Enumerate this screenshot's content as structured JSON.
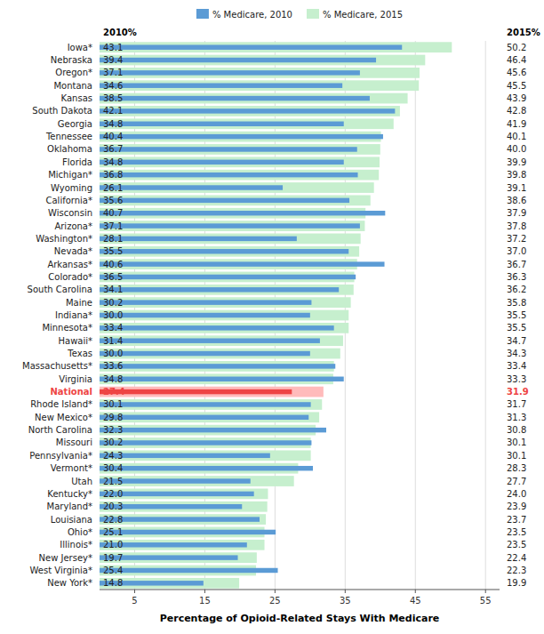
{
  "chart_data": {
    "type": "bar",
    "orientation": "horizontal",
    "xlabel": "Percentage of Opioid-Related Stays With Medicare",
    "annotations": [
      "2010%",
      "2015%"
    ],
    "categories": [
      "Iowa*",
      "Nebraska",
      "Oregon*",
      "Montana",
      "Kansas",
      "South Dakota",
      "Georgia",
      "Tennessee",
      "Oklahoma",
      "Florida",
      "Michigan*",
      "Wyoming",
      "California*",
      "Wisconsin",
      "Arizona*",
      "Washington*",
      "Nevada*",
      "Arkansas*",
      "Colorado*",
      "South Carolina",
      "Maine",
      "Indiana*",
      "Minnesota*",
      "Hawaii*",
      "Texas",
      "Massachusetts*",
      "Virginia",
      "National",
      "Rhode Island*",
      "New Mexico*",
      "North Carolina",
      "Missouri",
      "Pennsylvania*",
      "Vermont*",
      "Utah",
      "Kentucky*",
      "Maryland*",
      "Louisiana",
      "Ohio*",
      "Illinois*",
      "New Jersey*",
      "West Virginia*",
      "New York*"
    ],
    "series": [
      {
        "name": "% Medicare, 2010",
        "color": "#5B9BD5",
        "colors": [
          "#5B9BD5",
          "#5B9BD5",
          "#5B9BD5",
          "#5B9BD5",
          "#5B9BD5",
          "#5B9BD5",
          "#5B9BD5",
          "#5B9BD5",
          "#5B9BD5",
          "#5B9BD5",
          "#5B9BD5",
          "#5B9BD5",
          "#5B9BD5",
          "#5B9BD5",
          "#5B9BD5",
          "#5B9BD5",
          "#5B9BD5",
          "#5B9BD5",
          "#5B9BD5",
          "#5B9BD5",
          "#5B9BD5",
          "#5B9BD5",
          "#5B9BD5",
          "#5B9BD5",
          "#5B9BD5",
          "#5B9BD5",
          "#5B9BD5",
          "#EE4444",
          "#5B9BD5",
          "#5B9BD5",
          "#5B9BD5",
          "#5B9BD5",
          "#5B9BD5",
          "#5B9BD5",
          "#5B9BD5",
          "#5B9BD5",
          "#5B9BD5",
          "#5B9BD5",
          "#5B9BD5",
          "#5B9BD5",
          "#5B9BD5",
          "#5B9BD5",
          "#5B9BD5"
        ],
        "values": [
          43.1,
          39.4,
          37.1,
          34.6,
          38.5,
          42.1,
          34.8,
          40.4,
          36.7,
          34.8,
          36.8,
          26.1,
          35.6,
          40.7,
          37.1,
          28.1,
          35.5,
          40.6,
          36.5,
          34.1,
          30.2,
          30.0,
          33.4,
          31.4,
          30.0,
          33.6,
          34.8,
          27.4,
          30.1,
          29.8,
          32.3,
          30.2,
          24.3,
          30.4,
          21.5,
          22.0,
          20.3,
          22.8,
          25.1,
          21.0,
          19.7,
          25.4,
          14.8
        ],
        "value_labels": [
          "43.1",
          "39.4",
          "37.1",
          "34.6",
          "38.5",
          "42.1",
          "34.8",
          "40.4",
          "36.7",
          "34.8",
          "36.8",
          "26.1",
          "35.6",
          "40.7",
          "37.1",
          "28.1",
          "35.5",
          "40.6",
          "36.5",
          "34.1",
          "30.2",
          "30.0",
          "33.4",
          "31.4",
          "30.0",
          "33.6",
          "34.8",
          "27.4",
          "30.1",
          "29.8",
          "32.3",
          "30.2",
          "24.3",
          "30.4",
          "21.5",
          "22.0",
          "20.3",
          "22.8",
          "25.1",
          "21.0",
          "19.7",
          "25.4",
          "14.8"
        ]
      },
      {
        "name": "% Medicare, 2015",
        "color": "#C6EFCE",
        "colors": [
          "#C6EFCE",
          "#C6EFCE",
          "#C6EFCE",
          "#C6EFCE",
          "#C6EFCE",
          "#C6EFCE",
          "#C6EFCE",
          "#C6EFCE",
          "#C6EFCE",
          "#C6EFCE",
          "#C6EFCE",
          "#C6EFCE",
          "#C6EFCE",
          "#C6EFCE",
          "#C6EFCE",
          "#C6EFCE",
          "#C6EFCE",
          "#C6EFCE",
          "#C6EFCE",
          "#C6EFCE",
          "#C6EFCE",
          "#C6EFCE",
          "#C6EFCE",
          "#C6EFCE",
          "#C6EFCE",
          "#C6EFCE",
          "#C6EFCE",
          "#FFBBBB",
          "#C6EFCE",
          "#C6EFCE",
          "#C6EFCE",
          "#C6EFCE",
          "#C6EFCE",
          "#C6EFCE",
          "#C6EFCE",
          "#C6EFCE",
          "#C6EFCE",
          "#C6EFCE",
          "#C6EFCE",
          "#C6EFCE",
          "#C6EFCE",
          "#C6EFCE",
          "#C6EFCE"
        ],
        "values": [
          50.2,
          46.4,
          45.6,
          45.5,
          43.9,
          42.8,
          41.9,
          40.1,
          40.0,
          39.9,
          39.8,
          39.1,
          38.6,
          37.9,
          37.8,
          37.2,
          37.0,
          36.7,
          36.3,
          36.2,
          35.8,
          35.5,
          35.5,
          34.7,
          34.3,
          33.4,
          33.3,
          31.9,
          31.7,
          31.3,
          30.8,
          30.1,
          30.1,
          28.3,
          27.7,
          24.0,
          23.9,
          23.7,
          23.5,
          23.5,
          22.4,
          22.3,
          19.9
        ],
        "value_labels": [
          "50.2",
          "46.4",
          "45.6",
          "45.5",
          "43.9",
          "42.8",
          "41.9",
          "40.1",
          "40.0",
          "39.9",
          "39.8",
          "39.1",
          "38.6",
          "37.9",
          "37.8",
          "37.2",
          "37.0",
          "36.7",
          "36.3",
          "36.2",
          "35.8",
          "35.5",
          "35.5",
          "34.7",
          "34.3",
          "33.4",
          "33.3",
          "31.9",
          "31.7",
          "31.3",
          "30.8",
          "30.1",
          "30.1",
          "28.3",
          "27.7",
          "24.0",
          "23.9",
          "23.7",
          "23.5",
          "23.5",
          "22.4",
          "22.3",
          "19.9"
        ]
      }
    ],
    "xlim": [
      0,
      57
    ],
    "xticks": [
      5,
      15,
      25,
      35,
      45,
      55
    ],
    "grid": true,
    "legend": "top",
    "data_labels": true
  }
}
